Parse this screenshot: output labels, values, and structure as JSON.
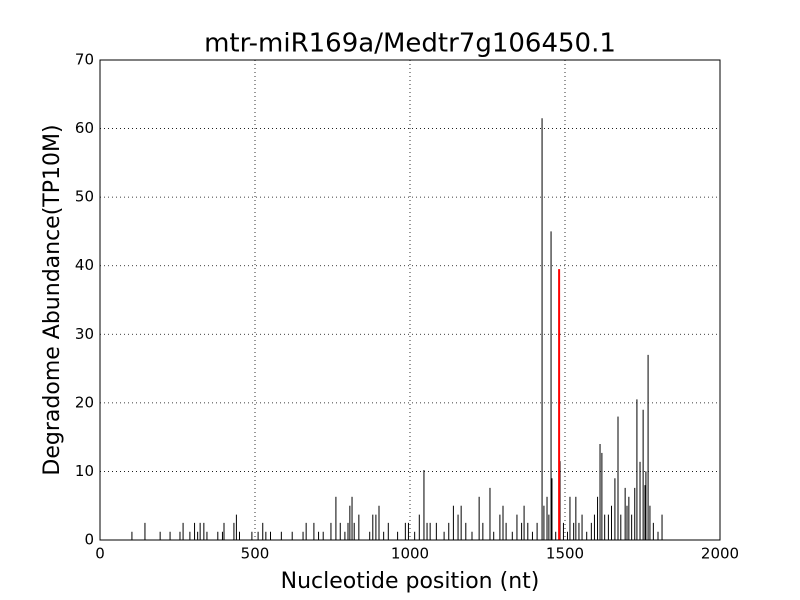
{
  "chart_data": {
    "type": "stem",
    "title": "mtr-miR169a/Medtr7g106450.1",
    "xlabel": "Nucleotide position (nt)",
    "ylabel": "Degradome Abundance(TP10M)",
    "xlim": [
      0,
      2000
    ],
    "xticks": [
      0,
      500,
      1000,
      1500,
      2000
    ],
    "ylim": [
      0,
      70
    ],
    "yticks": [
      0,
      10,
      20,
      30,
      40,
      50,
      60,
      70
    ],
    "grid": true,
    "series": [
      {
        "color": "#000000",
        "x": [
          103,
          145,
          194,
          226,
          258,
          268,
          290,
          305,
          315,
          323,
          335,
          345,
          380,
          395,
          400,
          432,
          440,
          450,
          490,
          510,
          525,
          535,
          550,
          585,
          620,
          655,
          665,
          690,
          705,
          720,
          745,
          761,
          775,
          790,
          800,
          806,
          813,
          820,
          835,
          870,
          880,
          890,
          900,
          915,
          930,
          960,
          985,
          995,
          1015,
          1030,
          1045,
          1055,
          1065,
          1085,
          1110,
          1125,
          1140,
          1155,
          1165,
          1180,
          1200,
          1223,
          1235,
          1258,
          1270,
          1290,
          1300,
          1310,
          1330,
          1345,
          1360,
          1368,
          1380,
          1395,
          1410,
          1426,
          1432,
          1442,
          1448,
          1455,
          1458,
          1470,
          1484,
          1495,
          1508,
          1516,
          1528,
          1535,
          1545,
          1555,
          1570,
          1585,
          1595,
          1605,
          1613,
          1619,
          1628,
          1640,
          1650,
          1661,
          1671,
          1680,
          1694,
          1700,
          1706,
          1715,
          1725,
          1732,
          1742,
          1752,
          1758,
          1761,
          1768,
          1774,
          1785,
          1800,
          1813
        ],
        "values": [
          1.2,
          2.5,
          1.2,
          1.2,
          1.2,
          2.5,
          1.2,
          2.5,
          1.2,
          2.5,
          2.5,
          1.2,
          1.2,
          1.2,
          2.5,
          2.5,
          3.7,
          1.2,
          1.2,
          1.2,
          2.5,
          1.2,
          1.2,
          1.2,
          1.2,
          1.2,
          2.5,
          2.5,
          1.2,
          1.2,
          2.5,
          6.3,
          2.5,
          1.2,
          2.5,
          5,
          6.3,
          2.5,
          3.7,
          1.2,
          3.7,
          3.7,
          5,
          1.2,
          2.5,
          1.2,
          2.5,
          2.5,
          1.2,
          3.7,
          10.2,
          2.5,
          2.5,
          2.5,
          1.2,
          2.5,
          5,
          3.7,
          5,
          2.5,
          1.2,
          6.3,
          2.5,
          7.6,
          1.2,
          3.7,
          5,
          2.5,
          1.2,
          3.7,
          2.5,
          5,
          2.5,
          1.2,
          2.5,
          61.5,
          5,
          6.3,
          3.7,
          45,
          9,
          1.2,
          11.5,
          2.5,
          1.2,
          6.3,
          2.5,
          6.3,
          2.5,
          3.7,
          1.2,
          2.5,
          3.7,
          6.3,
          14,
          12.7,
          3.7,
          3.7,
          5,
          9,
          18,
          3.7,
          7.6,
          5,
          6.3,
          3.7,
          7.6,
          20.5,
          11.4,
          19,
          8,
          10,
          27,
          5,
          2.5,
          1.2,
          3.7
        ]
      },
      {
        "color": "#ff0000",
        "x": [
          1481
        ],
        "values": [
          39.5
        ]
      }
    ]
  }
}
